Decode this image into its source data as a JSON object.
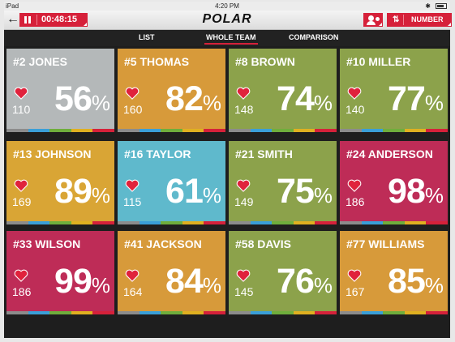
{
  "status_bar": {
    "carrier": "iPad",
    "time": "4:20 PM"
  },
  "header": {
    "back_icon": "back-arrow-icon",
    "session_time": "00:48:15",
    "logo": "POLAR",
    "sort_label": "NUMBER"
  },
  "tabs": [
    {
      "label": "LIST",
      "active": false
    },
    {
      "label": "WHOLE TEAM",
      "active": true
    },
    {
      "label": "COMPARISON",
      "active": false
    }
  ],
  "zone_colors": [
    "#8c8c8c",
    "#3a9fd8",
    "#6fae3c",
    "#e0b020",
    "#d6213a"
  ],
  "players": [
    {
      "name": "#2 JONES",
      "heart_rate": "110",
      "percent": "56",
      "unit": "%",
      "color": "#b4b8b9"
    },
    {
      "name": "#5 THOMAS",
      "heart_rate": "160",
      "percent": "82",
      "unit": "%",
      "color": "#d79a3a"
    },
    {
      "name": "#8 BROWN",
      "heart_rate": "148",
      "percent": "74",
      "unit": "%",
      "color": "#8ca24b"
    },
    {
      "name": "#10 MILLER",
      "heart_rate": "140",
      "percent": "77",
      "unit": "%",
      "color": "#8ca24b"
    },
    {
      "name": "#13 JOHNSON",
      "heart_rate": "169",
      "percent": "89",
      "unit": "%",
      "color": "#d9a535"
    },
    {
      "name": "#16 TAYLOR",
      "heart_rate": "115",
      "percent": "61",
      "unit": "%",
      "color": "#5fb9cc"
    },
    {
      "name": "#21 SMITH",
      "heart_rate": "149",
      "percent": "75",
      "unit": "%",
      "color": "#8ca24b"
    },
    {
      "name": "#24 ANDERSON",
      "heart_rate": "186",
      "percent": "98",
      "unit": "%",
      "color": "#be2c57"
    },
    {
      "name": "#33 WILSON",
      "heart_rate": "186",
      "percent": "99",
      "unit": "%",
      "color": "#be2c57"
    },
    {
      "name": "#41 JACKSON",
      "heart_rate": "164",
      "percent": "84",
      "unit": "%",
      "color": "#d79a3a"
    },
    {
      "name": "#58 DAVIS",
      "heart_rate": "145",
      "percent": "76",
      "unit": "%",
      "color": "#8ca24b"
    },
    {
      "name": "#77 WILLIAMS",
      "heart_rate": "167",
      "percent": "85",
      "unit": "%",
      "color": "#d79a3a"
    }
  ]
}
